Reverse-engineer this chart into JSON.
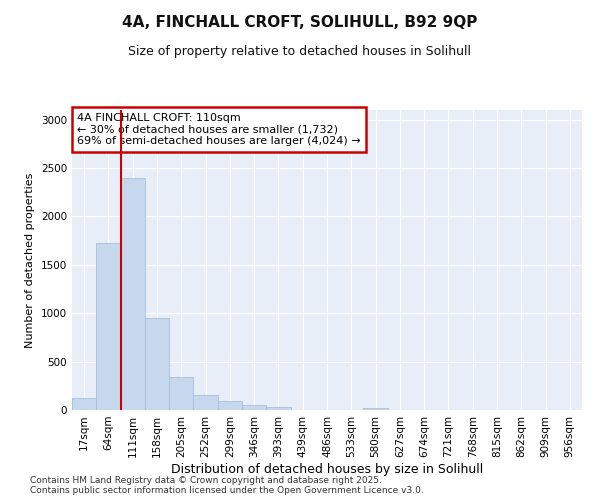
{
  "title_line1": "4A, FINCHALL CROFT, SOLIHULL, B92 9QP",
  "title_line2": "Size of property relative to detached houses in Solihull",
  "xlabel": "Distribution of detached houses by size in Solihull",
  "ylabel": "Number of detached properties",
  "categories": [
    "17sqm",
    "64sqm",
    "111sqm",
    "158sqm",
    "205sqm",
    "252sqm",
    "299sqm",
    "346sqm",
    "393sqm",
    "439sqm",
    "486sqm",
    "533sqm",
    "580sqm",
    "627sqm",
    "674sqm",
    "721sqm",
    "768sqm",
    "815sqm",
    "862sqm",
    "909sqm",
    "956sqm"
  ],
  "values": [
    120,
    1730,
    2400,
    950,
    340,
    155,
    90,
    55,
    35,
    0,
    0,
    0,
    25,
    0,
    0,
    0,
    0,
    0,
    0,
    0,
    0
  ],
  "bar_color": "#c5d8ed",
  "bar_edge_color": "#aabfd6",
  "vline_index": 2,
  "vline_color": "#cc0000",
  "annotation_text_line1": "4A FINCHALL CROFT: 110sqm",
  "annotation_text_line2": "← 30% of detached houses are smaller (1,732)",
  "annotation_text_line3": "69% of semi-detached houses are larger (4,024) →",
  "annotation_box_color": "#cc0000",
  "annotation_fill_color": "#ffffff",
  "ylim": [
    0,
    3100
  ],
  "yticks": [
    0,
    500,
    1000,
    1500,
    2000,
    2500,
    3000
  ],
  "fig_bg_color": "#ffffff",
  "axes_bg_color": "#e8eef8",
  "grid_color": "#ffffff",
  "footer_line1": "Contains HM Land Registry data © Crown copyright and database right 2025.",
  "footer_line2": "Contains public sector information licensed under the Open Government Licence v3.0.",
  "title1_fontsize": 11,
  "title2_fontsize": 9,
  "xlabel_fontsize": 9,
  "ylabel_fontsize": 8,
  "tick_fontsize": 7.5,
  "footer_fontsize": 6.5,
  "ann_fontsize": 8
}
